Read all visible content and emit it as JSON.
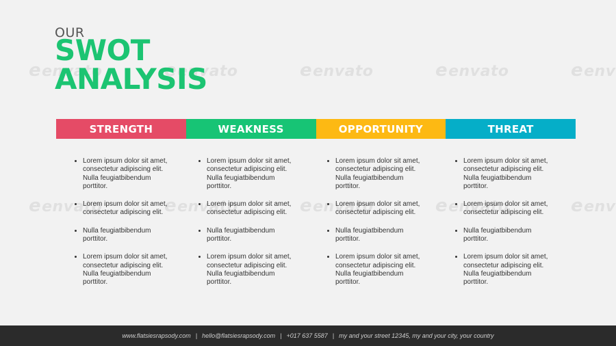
{
  "header": {
    "pretitle": "OUR",
    "title_line1": "SWOT",
    "title_line2": "ANALYSIS"
  },
  "watermark_text": "envato",
  "colors": {
    "title": "#1cc472",
    "strength": "#e54b66",
    "weakness": "#17c475",
    "opportunity": "#fdb913",
    "threat": "#05aec8",
    "footer_bg": "#2b2b2b"
  },
  "columns": [
    {
      "label": "STRENGTH",
      "items": [
        "Lorem ipsum dolor sit amet, consectetur adipiscing elit. Nulla feugiatbibendum porttitor.",
        "Lorem ipsum dolor sit amet, consectetur adipiscing elit.",
        "Nulla feugiatbibendum porttitor.",
        "Lorem ipsum dolor sit amet, consectetur adipiscing elit. Nulla feugiatbibendum porttitor."
      ]
    },
    {
      "label": "WEAKNESS",
      "items": [
        "Lorem ipsum dolor sit amet, consectetur adipiscing elit. Nulla feugiatbibendum porttitor.",
        "Lorem ipsum dolor sit amet, consectetur adipiscing elit.",
        "Nulla feugiatbibendum porttitor.",
        "Lorem ipsum dolor sit amet, consectetur adipiscing elit. Nulla feugiatbibendum porttitor."
      ]
    },
    {
      "label": "OPPORTUNITY",
      "items": [
        "Lorem ipsum dolor sit amet, consectetur adipiscing elit. Nulla feugiatbibendum porttitor.",
        "Lorem ipsum dolor sit amet, consectetur adipiscing elit.",
        "Nulla feugiatbibendum porttitor.",
        "Lorem ipsum dolor sit amet, consectetur adipiscing elit. Nulla feugiatbibendum porttitor."
      ]
    },
    {
      "label": "THREAT",
      "items": [
        "Lorem ipsum dolor sit amet, consectetur adipiscing elit. Nulla feugiatbibendum porttitor.",
        "Lorem ipsum dolor sit amet, consectetur adipiscing elit.",
        "Nulla feugiatbibendum porttitor.",
        "Lorem ipsum dolor sit amet, consectetur adipiscing elit. Nulla feugiatbibendum porttitor."
      ]
    }
  ],
  "footer": {
    "website": "www.flatsiesrapsody.com",
    "separator": "|",
    "email": "hello@flatsiesrapsody.com",
    "phone": "+017 637 5587",
    "address": "my and your street 12345, my and  your city, your country"
  }
}
